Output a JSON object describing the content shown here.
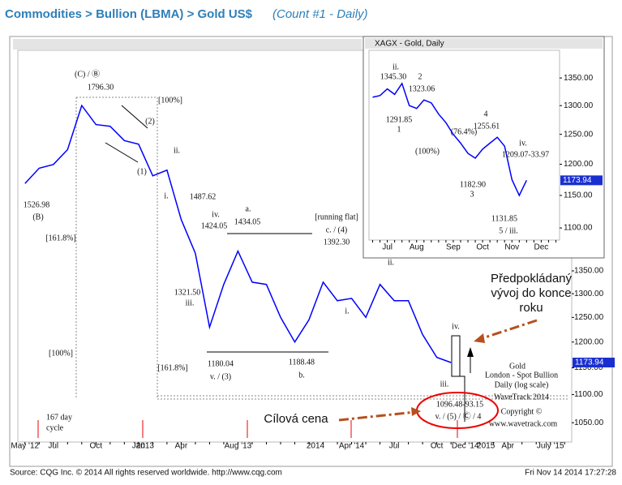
{
  "header": {
    "title": "Commodities > Bullion (LBMA) > Gold US$",
    "subtitle": "(Count #1 - Daily)"
  },
  "footer": {
    "source": "Source: CQG Inc. © 2014 All rights reserved worldwide. http://www.cqg.com",
    "timestamp": "Fri Nov 14 2014 17:27:28"
  },
  "chart_data": [
    {
      "type": "line",
      "log_scale": true,
      "categories": [
        "May '12",
        null,
        "Jul",
        null,
        null,
        "Oct",
        null,
        null,
        "Jan",
        null,
        null,
        "Apr",
        null,
        null,
        null,
        "Aug '13",
        null,
        null,
        null,
        null,
        null,
        null,
        null,
        "Apr '14",
        null,
        null,
        "Jul",
        null,
        null,
        "Oct",
        null,
        "Dec '14",
        null,
        null,
        "Apr",
        null,
        null,
        "July '15",
        null
      ],
      "year_labels": [
        "2013",
        "2014",
        "2015"
      ],
      "series": [
        {
          "color": "#0000ff",
          "values": [
            1560,
            1600,
            1610,
            1650,
            1775,
            1720,
            1715,
            1675,
            1665,
            1580,
            1595,
            1470,
            1390,
            1230,
            1320,
            1395,
            1325,
            1320,
            1250,
            1200,
            1245,
            1325,
            1285,
            1290,
            1250,
            1320,
            1285,
            1285,
            1215,
            1170,
            1160,
            null,
            null,
            null,
            null,
            null,
            null,
            null,
            null
          ]
        }
      ],
      "ylim": [
        1017,
        1945
      ],
      "yticks": [
        {
          "value": 1050,
          "label": "1050.00"
        },
        {
          "value": 1100,
          "label": "1100.00"
        },
        {
          "value": 1150,
          "label": "1150.00"
        },
        {
          "value": 1200,
          "label": "1200.00"
        },
        {
          "value": 1250,
          "label": "1250.00"
        },
        {
          "value": 1300,
          "label": "1300.00"
        },
        {
          "value": 1350,
          "label": "1350.00"
        }
      ],
      "annotations": [
        "(C) / Ⓑ",
        "1796.30",
        "[100%]",
        "(2)",
        "(1)",
        "ii.",
        "i.",
        "1526.98",
        "(B)",
        "[161.8%]",
        "[100%]",
        "[161.8%]",
        "1487.62",
        "iv.",
        "1424.05",
        "1321.50",
        "iii.",
        "a.",
        "1434.05",
        "[running flat]",
        "c. / (4)",
        "1392.30",
        "1180.04",
        "v. / (3)",
        "1188.48",
        "b.",
        "i.",
        "ii.",
        "iii.",
        "iv.",
        "1096.48-93.15",
        "v. / (5) / Ⓒ / 4",
        "167 day",
        "cycle",
        "Gold",
        "London - Spot Bullion",
        "Daily (log scale)",
        "WaveTrack 2014",
        "Copyright ©",
        "www.wavetrack.com",
        "Předpokládaný",
        "vývoj do konce",
        "roku",
        "Cílová cena",
        "1173.94"
      ]
    },
    {
      "type": "line",
      "log_scale": true,
      "title": "XAGX - Gold, Daily",
      "categories": [
        null,
        null,
        "Jul",
        null,
        null,
        null,
        "Aug",
        null,
        null,
        null,
        null,
        "Sep",
        null,
        null,
        null,
        "Oct",
        null,
        null,
        null,
        "Nov",
        null,
        null,
        null,
        "Dec",
        null,
        null
      ],
      "series": [
        {
          "color": "#0000ff",
          "values": [
            1315,
            1318,
            1330,
            1320,
            1340,
            1300,
            1295,
            1310,
            1305,
            1285,
            1270,
            1250,
            1235,
            1218,
            1210,
            1225,
            1235,
            1245,
            1230,
            1175,
            1150,
            1173.94,
            null,
            null,
            null,
            null
          ]
        }
      ],
      "ylim": [
        1082,
        1402
      ],
      "yticks": [
        {
          "value": 1100,
          "label": "1100.00"
        },
        {
          "value": 1150,
          "label": "1150.00"
        },
        {
          "value": 1200,
          "label": "1200.00"
        },
        {
          "value": 1250,
          "label": "1250.00"
        },
        {
          "value": 1300,
          "label": "1300.00"
        },
        {
          "value": 1350,
          "label": "1350.00"
        }
      ],
      "annotations": [
        "ii.",
        "1345.30",
        "2",
        "1323.06",
        "1291.85",
        "1",
        "(76.4%)",
        "(100%)",
        "1255.61",
        "4",
        "1182.90",
        "3",
        "iv.",
        "1209.07-33.97",
        "1131.85",
        "5 / iii.",
        "1173.94"
      ]
    }
  ]
}
